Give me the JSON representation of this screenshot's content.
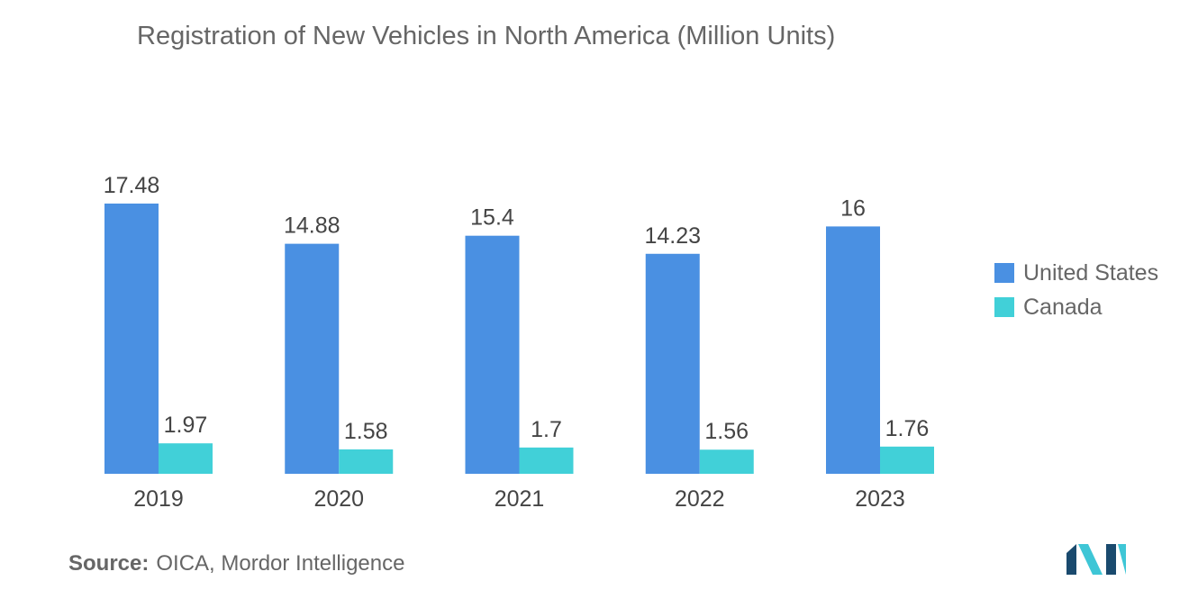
{
  "chart_data": {
    "type": "bar",
    "title": "Registration of New Vehicles in North America (Million Units)",
    "categories": [
      "2019",
      "2020",
      "2021",
      "2022",
      "2023"
    ],
    "series": [
      {
        "name": "United States",
        "values": [
          17.48,
          14.88,
          15.4,
          14.23,
          16
        ],
        "labels": [
          "17.48",
          "14.88",
          "15.4",
          "14.23",
          "16"
        ],
        "color": "#4a90e2"
      },
      {
        "name": "Canada",
        "values": [
          1.97,
          1.58,
          1.7,
          1.56,
          1.76
        ],
        "labels": [
          "1.97",
          "1.58",
          "1.7",
          "1.56",
          "1.76"
        ],
        "color": "#41d0d8"
      }
    ],
    "xlabel": "",
    "ylabel": "",
    "ylim": [
      0,
      17.48
    ],
    "grid": false,
    "legend_position": "right"
  },
  "source": {
    "label": "Source:",
    "text": "OICA, Mordor Intelligence"
  },
  "colors": {
    "text": "#666666",
    "value_text": "#444444",
    "logo_dark": "#1a4a6e",
    "logo_light": "#3ec6d6"
  }
}
